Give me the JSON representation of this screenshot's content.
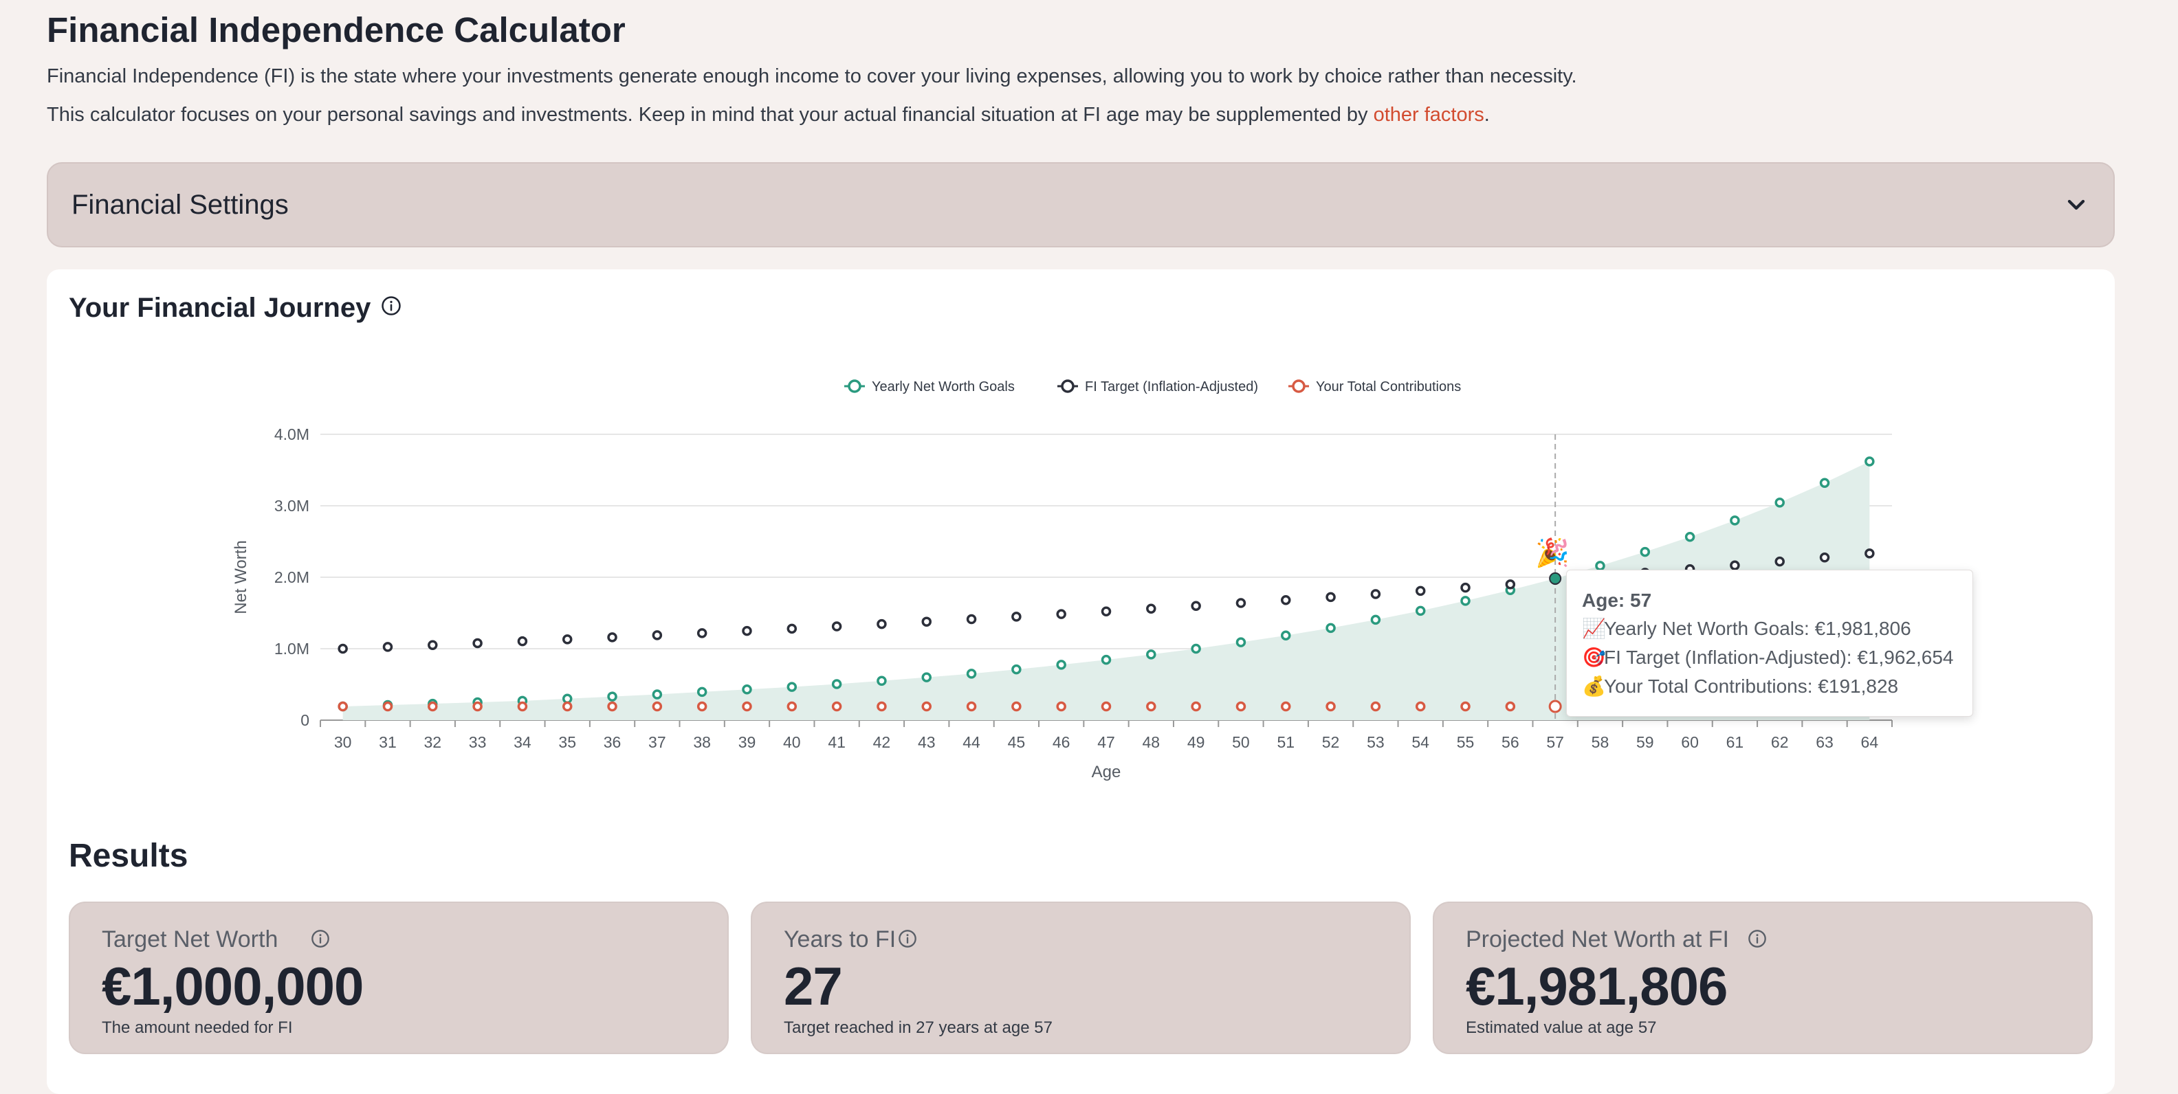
{
  "header": {
    "title": "Financial Independence Calculator",
    "intro_1": "Financial Independence (FI) is the state where your investments generate enough income to cover your living expenses, allowing you to work by choice rather than necessity.",
    "intro_2_prefix": "This calculator focuses on your personal savings and investments. Keep in mind that your actual financial situation at FI age may be supplemented by ",
    "intro_2_link": "other factors",
    "intro_2_suffix": "."
  },
  "settings": {
    "label": "Financial Settings",
    "icon": "chevron-down-icon"
  },
  "journey": {
    "title": "Your Financial Journey",
    "info_icon": "info-icon",
    "tooltip": {
      "title": "Age: 57",
      "lines": [
        {
          "emoji": "📈",
          "text": "Yearly Net Worth Goals: €1,981,806"
        },
        {
          "emoji": "🎯",
          "text": "FI Target (Inflation-Adjusted): €1,962,654"
        },
        {
          "emoji": "💰",
          "text": "Your Total Contributions: €191,828"
        }
      ]
    },
    "fi_marker": "🎉"
  },
  "chart_data": {
    "type": "line",
    "xlabel": "Age",
    "ylabel": "Net Worth",
    "ylim": [
      0,
      4000000
    ],
    "yticks": [
      {
        "v": 0,
        "label": "0"
      },
      {
        "v": 1000000,
        "label": "1.0M"
      },
      {
        "v": 2000000,
        "label": "2.0M"
      },
      {
        "v": 3000000,
        "label": "3.0M"
      },
      {
        "v": 4000000,
        "label": "4.0M"
      }
    ],
    "x": [
      30,
      31,
      32,
      33,
      34,
      35,
      36,
      37,
      38,
      39,
      40,
      41,
      42,
      43,
      44,
      45,
      46,
      47,
      48,
      49,
      50,
      51,
      52,
      53,
      54,
      55,
      56,
      57,
      58,
      59,
      60,
      61,
      62,
      63,
      64
    ],
    "legend_position": "top-center",
    "highlight_x": 57,
    "series": [
      {
        "name": "Yearly Net Worth Goals",
        "color": "#2a9a7f",
        "fill": "#e1eeea",
        "values": [
          191828,
          212000,
          230000,
          250000,
          270000,
          300000,
          330000,
          360000,
          395000,
          430000,
          465000,
          505000,
          550000,
          600000,
          650000,
          710000,
          775000,
          845000,
          920000,
          1000000,
          1090000,
          1185000,
          1290000,
          1405000,
          1530000,
          1670000,
          1820000,
          1981806,
          2160000,
          2355000,
          2565000,
          2795000,
          3045000,
          3320000,
          3620000
        ]
      },
      {
        "name": "FI Target (Inflation-Adjusted)",
        "color": "#2c2f3a",
        "values": [
          1000000,
          1025000,
          1051000,
          1077000,
          1104000,
          1131000,
          1160000,
          1189000,
          1218000,
          1249000,
          1280000,
          1312000,
          1345000,
          1378000,
          1413000,
          1448000,
          1484000,
          1522000,
          1560000,
          1599000,
          1639000,
          1680000,
          1722000,
          1765000,
          1809000,
          1854000,
          1900000,
          1962654,
          2012000,
          2062000,
          2113000,
          2166000,
          2220000,
          2276000,
          2333000
        ]
      },
      {
        "name": "Your Total Contributions",
        "color": "#d75a43",
        "values": [
          191828,
          191828,
          191828,
          191828,
          191828,
          191828,
          191828,
          191828,
          191828,
          191828,
          191828,
          191828,
          191828,
          191828,
          191828,
          191828,
          191828,
          191828,
          191828,
          191828,
          191828,
          191828,
          191828,
          191828,
          191828,
          191828,
          191828,
          191828,
          191828,
          191828,
          191828,
          191828,
          191828,
          191828,
          191828
        ]
      }
    ]
  },
  "results": {
    "title": "Results",
    "cards": [
      {
        "label": "Target Net Worth",
        "value": "€1,000,000",
        "sub": "The amount needed for FI"
      },
      {
        "label": "Years to FI",
        "value": "27",
        "sub": "Target reached in 27 years at age 57"
      },
      {
        "label": "Projected Net Worth at FI",
        "value": "€1,981,806",
        "sub": "Estimated value at age 57"
      }
    ]
  }
}
